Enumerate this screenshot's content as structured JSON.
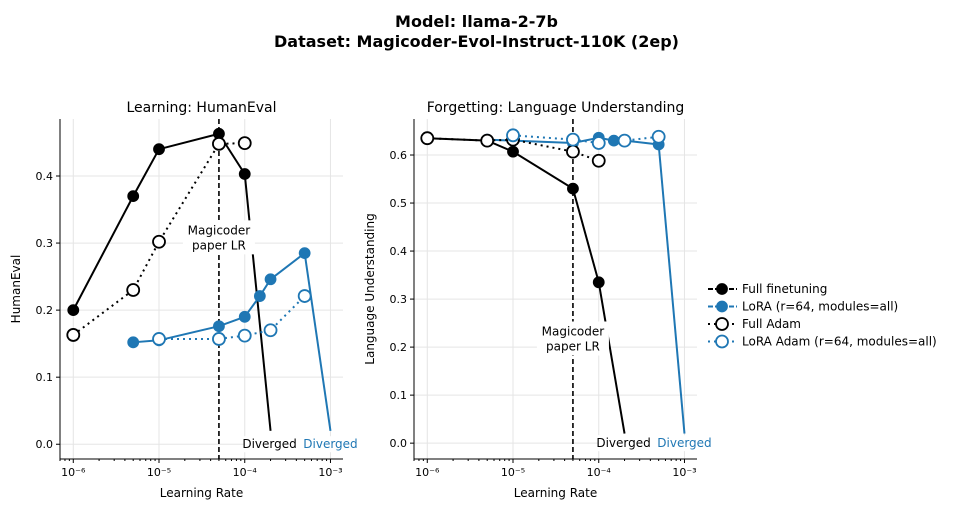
{
  "suptitle_line1": "Model: llama-2-7b",
  "suptitle_line2": "Dataset: Magicoder-Evol-Instruct-110K (2ep)",
  "colors": {
    "full": "#000000",
    "lora": "#1f77b4"
  },
  "chart_data": [
    {
      "type": "line",
      "title": "Learning: HumanEval",
      "xlabel": "Learning Rate",
      "ylabel": "HumanEval",
      "xscale": "log",
      "xlim": [
        7e-07,
        0.0014
      ],
      "ylim": [
        -0.022,
        0.485
      ],
      "xticks": [
        "10⁻⁶",
        "10⁻⁵",
        "10⁻⁴",
        "10⁻³"
      ],
      "yticks": [
        "0.0",
        "0.1",
        "0.2",
        "0.3",
        "0.4"
      ],
      "grid": true,
      "vline": {
        "x": 5e-05,
        "label": [
          "Magicoder",
          "paper LR"
        ]
      },
      "diverged_labels": [
        "Diverged",
        "Diverged"
      ],
      "series": [
        {
          "name": "Full finetuning",
          "x": [
            1e-06,
            5e-06,
            1e-05,
            5e-05,
            0.0001
          ],
          "y": [
            0.2,
            0.37,
            0.44,
            0.463,
            0.403
          ],
          "diverged_at": 0.0002
        },
        {
          "name": "LoRA (r=64, modules=all)",
          "x": [
            5e-06,
            1e-05,
            5e-05,
            0.0001,
            0.00015,
            0.0002,
            0.0005
          ],
          "y": [
            0.152,
            0.155,
            0.176,
            0.19,
            0.221,
            0.246,
            0.285
          ],
          "diverged_at": 0.001
        },
        {
          "name": "Full Adam",
          "x": [
            1e-06,
            5e-06,
            1e-05,
            5e-05,
            0.0001
          ],
          "y": [
            0.163,
            0.23,
            0.302,
            0.448,
            0.449
          ]
        },
        {
          "name": "LoRA Adam (r=64, modules=all)",
          "x": [
            1e-05,
            5e-05,
            0.0001,
            0.0002,
            0.0005
          ],
          "y": [
            0.157,
            0.157,
            0.162,
            0.17,
            0.221
          ]
        }
      ]
    },
    {
      "type": "line",
      "title": "Forgetting: Language Understanding",
      "xlabel": "Learning Rate",
      "ylabel": "Language Understanding",
      "xscale": "log",
      "xlim": [
        7e-07,
        0.0014
      ],
      "ylim": [
        -0.033,
        0.675
      ],
      "xticks": [
        "10⁻⁶",
        "10⁻⁵",
        "10⁻⁴",
        "10⁻³"
      ],
      "yticks": [
        "0.0",
        "0.1",
        "0.2",
        "0.3",
        "0.4",
        "0.5",
        "0.6"
      ],
      "grid": true,
      "vline": {
        "x": 5e-05,
        "label": [
          "Magicoder",
          "paper LR"
        ]
      },
      "diverged_labels": [
        "Diverged",
        "Diverged"
      ],
      "series": [
        {
          "name": "Full finetuning",
          "x": [
            1e-06,
            5e-06,
            1e-05,
            5e-05,
            0.0001
          ],
          "y": [
            0.635,
            0.63,
            0.607,
            0.53,
            0.335
          ],
          "diverged_at": 0.0002
        },
        {
          "name": "LoRA (r=64, modules=all)",
          "x": [
            5e-06,
            1e-05,
            5e-05,
            0.0001,
            0.00015,
            0.0002,
            0.0005
          ],
          "y": [
            0.632,
            0.63,
            0.625,
            0.636,
            0.63,
            0.63,
            0.622
          ],
          "diverged_at": 0.001
        },
        {
          "name": "Full Adam",
          "x": [
            1e-06,
            5e-06,
            1e-05,
            5e-05,
            0.0001
          ],
          "y": [
            0.635,
            0.63,
            0.632,
            0.607,
            0.588
          ]
        },
        {
          "name": "LoRA Adam (r=64, modules=all)",
          "x": [
            1e-05,
            5e-05,
            0.0001,
            0.0002,
            0.0005
          ],
          "y": [
            0.641,
            0.632,
            0.625,
            0.63,
            0.638
          ]
        }
      ]
    }
  ],
  "legend": [
    "Full finetuning",
    "LoRA (r=64, modules=all)",
    "Full Adam",
    "LoRA Adam (r=64, modules=all)"
  ]
}
